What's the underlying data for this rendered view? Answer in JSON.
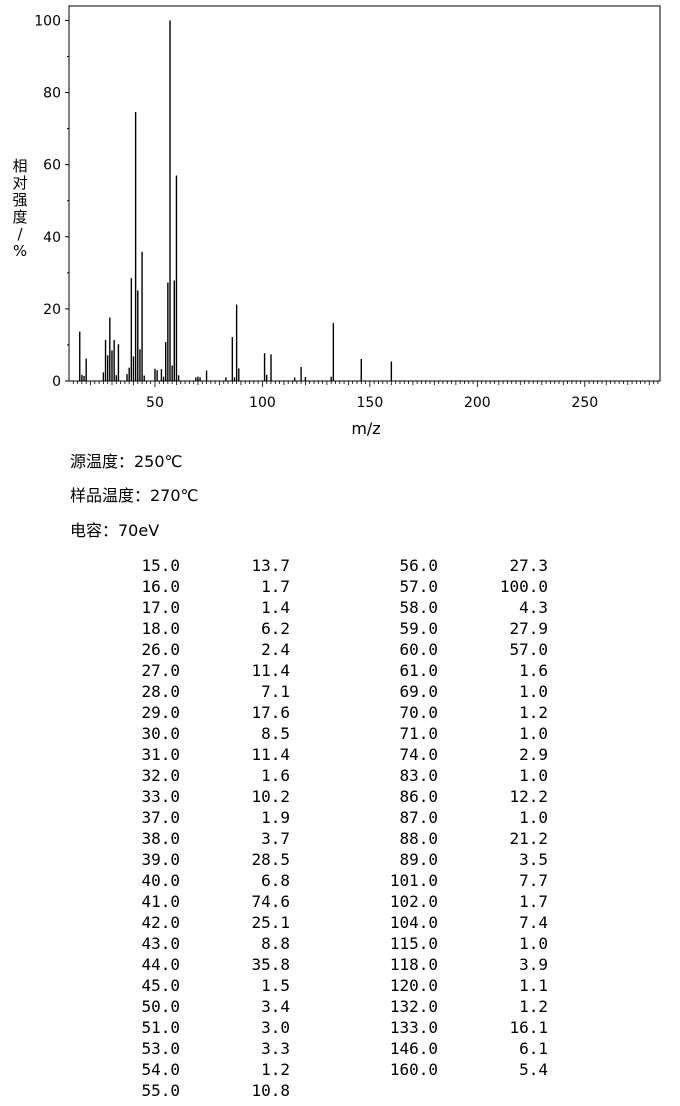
{
  "chart_data": {
    "type": "bar",
    "xlabel": "m/z",
    "ylabel": "相对强度/%",
    "xlim": [
      10,
      285
    ],
    "ylim": [
      0,
      104
    ],
    "xticks": [
      50,
      100,
      150,
      200,
      250
    ],
    "yticks": [
      0,
      20,
      40,
      60,
      80,
      100
    ],
    "grid": false,
    "points": [
      [
        15,
        13.7
      ],
      [
        16,
        1.7
      ],
      [
        17,
        1.4
      ],
      [
        18,
        6.2
      ],
      [
        26,
        2.4
      ],
      [
        27,
        11.4
      ],
      [
        28,
        7.1
      ],
      [
        29,
        17.6
      ],
      [
        30,
        8.5
      ],
      [
        31,
        11.4
      ],
      [
        32,
        1.6
      ],
      [
        33,
        10.2
      ],
      [
        37,
        1.9
      ],
      [
        38,
        3.7
      ],
      [
        39,
        28.5
      ],
      [
        40,
        6.8
      ],
      [
        41,
        74.6
      ],
      [
        42,
        25.1
      ],
      [
        43,
        8.8
      ],
      [
        44,
        35.8
      ],
      [
        45,
        1.5
      ],
      [
        50,
        3.4
      ],
      [
        51,
        3.0
      ],
      [
        53,
        3.3
      ],
      [
        54,
        1.2
      ],
      [
        55,
        10.8
      ],
      [
        56,
        27.3
      ],
      [
        57,
        100.0
      ],
      [
        58,
        4.3
      ],
      [
        59,
        27.9
      ],
      [
        60,
        57.0
      ],
      [
        61,
        1.6
      ],
      [
        69,
        1.0
      ],
      [
        70,
        1.2
      ],
      [
        71,
        1.0
      ],
      [
        74,
        2.9
      ],
      [
        83,
        1.0
      ],
      [
        86,
        12.2
      ],
      [
        87,
        1.0
      ],
      [
        88,
        21.2
      ],
      [
        89,
        3.5
      ],
      [
        101,
        7.7
      ],
      [
        102,
        1.7
      ],
      [
        104,
        7.4
      ],
      [
        115,
        1.0
      ],
      [
        118,
        3.9
      ],
      [
        120,
        1.1
      ],
      [
        132,
        1.2
      ],
      [
        133,
        16.1
      ],
      [
        146,
        6.1
      ],
      [
        160,
        5.4
      ]
    ]
  },
  "conditions": {
    "source_temp": "源温度：250℃",
    "sample_temp": "样品温度：270℃",
    "voltage": "电容：70eV"
  },
  "table_left": [
    [
      "15.0",
      "13.7"
    ],
    [
      "16.0",
      "1.7"
    ],
    [
      "17.0",
      "1.4"
    ],
    [
      "18.0",
      "6.2"
    ],
    [
      "26.0",
      "2.4"
    ],
    [
      "27.0",
      "11.4"
    ],
    [
      "28.0",
      "7.1"
    ],
    [
      "29.0",
      "17.6"
    ],
    [
      "30.0",
      "8.5"
    ],
    [
      "31.0",
      "11.4"
    ],
    [
      "32.0",
      "1.6"
    ],
    [
      "33.0",
      "10.2"
    ],
    [
      "37.0",
      "1.9"
    ],
    [
      "38.0",
      "3.7"
    ],
    [
      "39.0",
      "28.5"
    ],
    [
      "40.0",
      "6.8"
    ],
    [
      "41.0",
      "74.6"
    ],
    [
      "42.0",
      "25.1"
    ],
    [
      "43.0",
      "8.8"
    ],
    [
      "44.0",
      "35.8"
    ],
    [
      "45.0",
      "1.5"
    ],
    [
      "50.0",
      "3.4"
    ],
    [
      "51.0",
      "3.0"
    ],
    [
      "53.0",
      "3.3"
    ],
    [
      "54.0",
      "1.2"
    ],
    [
      "55.0",
      "10.8"
    ]
  ],
  "table_right": [
    [
      "56.0",
      "27.3"
    ],
    [
      "57.0",
      "100.0"
    ],
    [
      "58.0",
      "4.3"
    ],
    [
      "59.0",
      "27.9"
    ],
    [
      "60.0",
      "57.0"
    ],
    [
      "61.0",
      "1.6"
    ],
    [
      "69.0",
      "1.0"
    ],
    [
      "70.0",
      "1.2"
    ],
    [
      "71.0",
      "1.0"
    ],
    [
      "74.0",
      "2.9"
    ],
    [
      "83.0",
      "1.0"
    ],
    [
      "86.0",
      "12.2"
    ],
    [
      "87.0",
      "1.0"
    ],
    [
      "88.0",
      "21.2"
    ],
    [
      "89.0",
      "3.5"
    ],
    [
      "101.0",
      "7.7"
    ],
    [
      "102.0",
      "1.7"
    ],
    [
      "104.0",
      "7.4"
    ],
    [
      "115.0",
      "1.0"
    ],
    [
      "118.0",
      "3.9"
    ],
    [
      "120.0",
      "1.1"
    ],
    [
      "132.0",
      "1.2"
    ],
    [
      "133.0",
      "16.1"
    ],
    [
      "146.0",
      "6.1"
    ],
    [
      "160.0",
      "5.4"
    ]
  ]
}
